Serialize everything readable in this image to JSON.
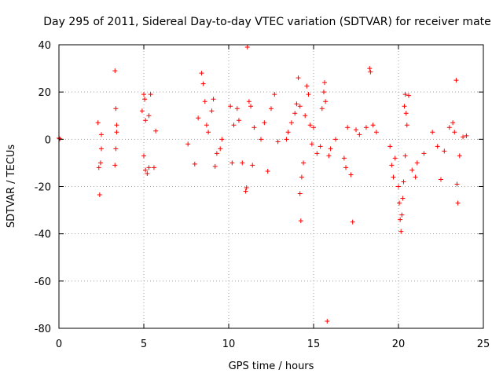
{
  "chart_data": {
    "type": "scatter",
    "title": "Day 295 of 2011, Sidereal Day-to-day VTEC variation (SDTVAR) for receiver mate",
    "xlabel": "GPS time / hours",
    "ylabel": "SDTVAR / TECUs",
    "xlim": [
      0,
      25
    ],
    "ylim": [
      -80,
      40
    ],
    "xticks": [
      0,
      5,
      10,
      15,
      20,
      25
    ],
    "yticks": [
      -80,
      -60,
      -40,
      -20,
      0,
      20,
      40
    ],
    "grid": true,
    "marker": "+",
    "color": "#ff0000",
    "series": [
      {
        "name": "SDTVAR",
        "description": "Dense band of points near 0 between 2.3 h and 24 h with scattered outliers",
        "points": [
          [
            0.0,
            0.5
          ],
          [
            0.05,
            0.2
          ],
          [
            2.3,
            7
          ],
          [
            2.35,
            -12
          ],
          [
            2.4,
            -23.5
          ],
          [
            2.45,
            -10
          ],
          [
            2.5,
            -4
          ],
          [
            2.5,
            2
          ],
          [
            3.3,
            29
          ],
          [
            3.35,
            13
          ],
          [
            3.4,
            6
          ],
          [
            3.3,
            -11
          ],
          [
            3.35,
            -4
          ],
          [
            3.4,
            3
          ],
          [
            4.9,
            12
          ],
          [
            5.0,
            19
          ],
          [
            5.05,
            17
          ],
          [
            5.1,
            8
          ],
          [
            5.0,
            -7
          ],
          [
            5.1,
            -13
          ],
          [
            5.2,
            -14.5
          ],
          [
            5.3,
            -12
          ],
          [
            5.3,
            10
          ],
          [
            5.4,
            19
          ],
          [
            5.6,
            -12
          ],
          [
            5.7,
            3.5
          ],
          [
            7.6,
            -2
          ],
          [
            8.0,
            -10.5
          ],
          [
            8.2,
            9
          ],
          [
            8.4,
            28
          ],
          [
            8.5,
            23.5
          ],
          [
            8.6,
            16
          ],
          [
            8.7,
            6
          ],
          [
            8.8,
            3
          ],
          [
            9.0,
            12
          ],
          [
            9.1,
            17
          ],
          [
            9.2,
            -11.5
          ],
          [
            9.3,
            -6
          ],
          [
            9.5,
            -4
          ],
          [
            9.6,
            0
          ],
          [
            10.1,
            14
          ],
          [
            10.2,
            -10
          ],
          [
            10.3,
            6
          ],
          [
            10.5,
            13
          ],
          [
            10.6,
            8
          ],
          [
            10.8,
            -10
          ],
          [
            11.0,
            -22
          ],
          [
            11.05,
            -20.5
          ],
          [
            11.1,
            39
          ],
          [
            11.2,
            16
          ],
          [
            11.3,
            14
          ],
          [
            11.4,
            -11
          ],
          [
            11.5,
            5
          ],
          [
            11.9,
            0
          ],
          [
            12.1,
            7
          ],
          [
            12.3,
            -13.5
          ],
          [
            12.5,
            13
          ],
          [
            12.7,
            19
          ],
          [
            12.9,
            -1
          ],
          [
            13.4,
            0
          ],
          [
            13.5,
            3
          ],
          [
            13.7,
            7
          ],
          [
            13.9,
            11
          ],
          [
            14.0,
            15
          ],
          [
            14.1,
            26
          ],
          [
            14.2,
            14
          ],
          [
            14.25,
            -34.5
          ],
          [
            14.2,
            -23
          ],
          [
            14.3,
            -16
          ],
          [
            14.4,
            -10
          ],
          [
            14.5,
            10
          ],
          [
            14.6,
            22.5
          ],
          [
            14.7,
            19
          ],
          [
            14.8,
            6
          ],
          [
            14.9,
            -2
          ],
          [
            15.0,
            5
          ],
          [
            15.2,
            -6
          ],
          [
            15.4,
            -3
          ],
          [
            15.5,
            13
          ],
          [
            15.6,
            20
          ],
          [
            15.65,
            24
          ],
          [
            15.7,
            16
          ],
          [
            15.8,
            -77
          ],
          [
            15.9,
            -7
          ],
          [
            16.0,
            -4
          ],
          [
            16.3,
            0
          ],
          [
            16.8,
            -8
          ],
          [
            16.9,
            -12
          ],
          [
            17.0,
            5
          ],
          [
            17.2,
            -15
          ],
          [
            17.3,
            -35
          ],
          [
            17.5,
            4
          ],
          [
            17.7,
            2
          ],
          [
            18.1,
            5
          ],
          [
            18.3,
            30
          ],
          [
            18.35,
            28.5
          ],
          [
            18.5,
            6
          ],
          [
            18.7,
            3
          ],
          [
            19.5,
            -3
          ],
          [
            19.6,
            -11
          ],
          [
            19.7,
            -16
          ],
          [
            19.8,
            -8
          ],
          [
            20.0,
            -20
          ],
          [
            20.05,
            -27
          ],
          [
            20.1,
            -34
          ],
          [
            20.15,
            -39
          ],
          [
            20.2,
            -32
          ],
          [
            20.25,
            -25
          ],
          [
            20.3,
            -18
          ],
          [
            20.4,
            -7
          ],
          [
            20.35,
            14
          ],
          [
            20.4,
            19
          ],
          [
            20.45,
            11
          ],
          [
            20.5,
            6
          ],
          [
            20.6,
            18.5
          ],
          [
            20.8,
            -13
          ],
          [
            21.0,
            -16
          ],
          [
            21.1,
            -10
          ],
          [
            21.5,
            -6
          ],
          [
            22.0,
            3
          ],
          [
            22.3,
            -3
          ],
          [
            22.5,
            -17
          ],
          [
            22.7,
            -5
          ],
          [
            23.0,
            5
          ],
          [
            23.2,
            7
          ],
          [
            23.3,
            3
          ],
          [
            23.4,
            25
          ],
          [
            23.45,
            -19
          ],
          [
            23.5,
            -27
          ],
          [
            23.6,
            -7
          ],
          [
            23.8,
            1
          ],
          [
            24.0,
            1.5
          ]
        ]
      }
    ]
  }
}
